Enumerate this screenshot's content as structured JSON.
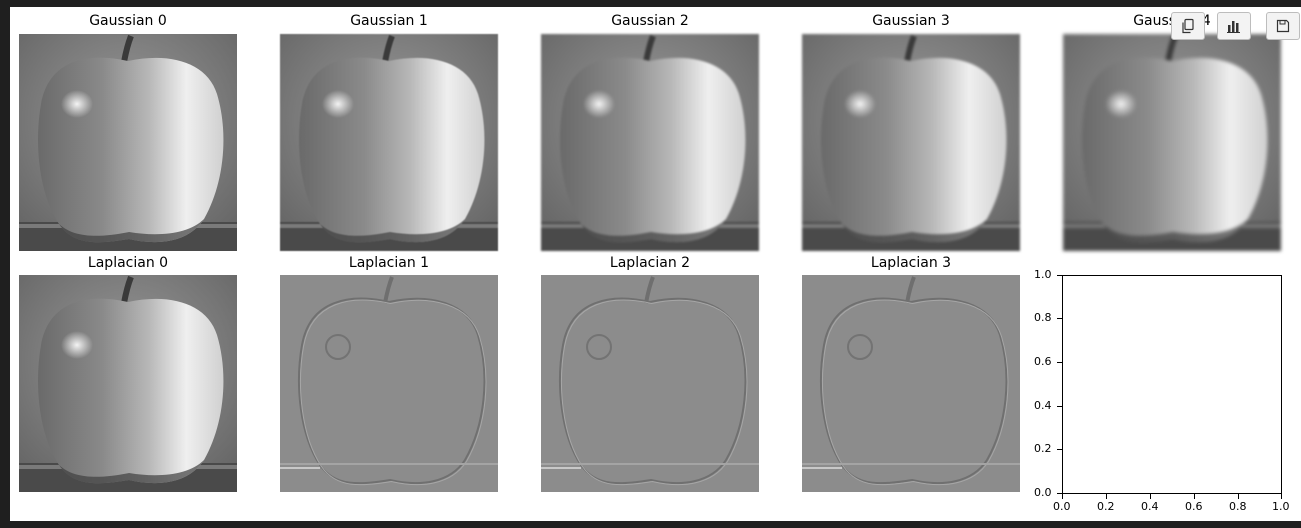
{
  "gaussian_titles": [
    "Gaussian 0",
    "Gaussian 1",
    "Gaussian 2",
    "Gaussian 3",
    "Gaussian 4"
  ],
  "laplacian_titles": [
    "Laplacian 0",
    "Laplacian 1",
    "Laplacian 2",
    "Laplacian 3"
  ],
  "empty_axes": {
    "x_ticks": [
      "0.0",
      "0.2",
      "0.4",
      "0.6",
      "0.8",
      "1.0"
    ],
    "y_ticks": [
      "0.0",
      "0.2",
      "0.4",
      "0.6",
      "0.8",
      "1.0"
    ]
  },
  "toolbar": {
    "icons": [
      "copy-icon",
      "chart-icon",
      "save-icon"
    ]
  },
  "colors": {
    "background": "#1f1f1f",
    "figure": "#ffffff",
    "laplacian_gray": "#8c8c8c"
  }
}
